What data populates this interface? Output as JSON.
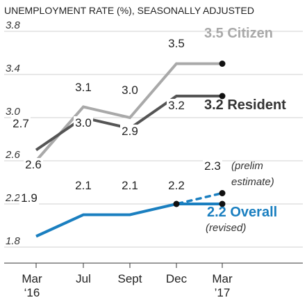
{
  "chart_data": {
    "type": "line",
    "title": "UNEMPLOYMENT RATE (%), SEASONALLY ADJUSTED",
    "ylim": [
      1.8,
      3.8
    ],
    "yticks": [
      "3.8",
      "3.4",
      "3.0",
      "2.6",
      "2.2",
      "1.8"
    ],
    "x": [
      "Mar '16",
      "Jul",
      "Sept",
      "Dec",
      "Mar '17"
    ],
    "xtick_labels": [
      {
        "top": "Mar",
        "bottom": "‘16"
      },
      {
        "top": "Jul",
        "bottom": ""
      },
      {
        "top": "Sept",
        "bottom": ""
      },
      {
        "top": "Dec",
        "bottom": ""
      },
      {
        "top": "Mar",
        "bottom": "’17"
      }
    ],
    "grid": true,
    "series": [
      {
        "name": "Citizen",
        "color": "#a9a9a9",
        "values": [
          2.6,
          3.1,
          3.0,
          3.5,
          3.5
        ],
        "labels": [
          "2.6",
          "3.1",
          "3.0",
          "3.5",
          ""
        ],
        "legend_value": "3.5",
        "legend_label": "Citizen"
      },
      {
        "name": "Resident",
        "color": "#555555",
        "values": [
          2.7,
          3.0,
          2.9,
          3.2,
          3.2
        ],
        "labels": [
          "2.7",
          "3.0",
          "2.9",
          "3.2",
          ""
        ],
        "legend_value": "3.2",
        "legend_label": "Resident"
      },
      {
        "name": "Overall",
        "color": "#1a7fc0",
        "values": [
          1.9,
          2.1,
          2.1,
          2.2,
          2.2
        ],
        "labels": [
          "1.9",
          "2.1",
          "2.1",
          "2.2",
          ""
        ],
        "legend_value": "2.2",
        "legend_label": "Overall",
        "legend_note": "(revised)"
      },
      {
        "name": "Overall (prelim)",
        "color": "#1a7fc0",
        "dashed": true,
        "values": [
          null,
          null,
          null,
          2.2,
          2.3
        ],
        "labels": [
          "",
          "",
          "",
          "",
          "2.3"
        ],
        "note_line1": "(prelim",
        "note_line2": "estimate)"
      }
    ]
  }
}
